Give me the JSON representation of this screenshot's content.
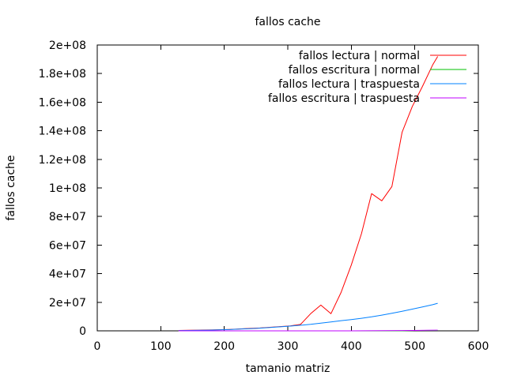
{
  "chart_data": {
    "type": "line",
    "title": "fallos cache",
    "xlabel": "tamanio matriz",
    "ylabel": "fallos cache",
    "xlim": [
      0,
      600
    ],
    "ylim": [
      0,
      200000000
    ],
    "x_ticks": [
      0,
      100,
      200,
      300,
      400,
      500,
      600
    ],
    "x_tick_labels": [
      "0",
      "100",
      "200",
      "300",
      "400",
      "500",
      "600"
    ],
    "y_ticks": [
      0,
      20000000,
      40000000,
      60000000,
      80000000,
      100000000,
      120000000,
      140000000,
      160000000,
      180000000,
      200000000
    ],
    "y_tick_labels": [
      "0",
      "2e+07",
      "4e+07",
      "6e+07",
      "8e+07",
      "1e+08",
      "1.2e+08",
      "1.4e+08",
      "1.6e+08",
      "1.8e+08",
      "2e+08"
    ],
    "grid": false,
    "legend_position": "top-right",
    "series": [
      {
        "name": "fallos lectura | normal",
        "color": "#ff0000",
        "x": [
          128,
          144,
          160,
          176,
          192,
          208,
          224,
          240,
          256,
          272,
          288,
          304,
          320,
          336,
          352,
          368,
          384,
          400,
          416,
          432,
          448,
          464,
          480,
          496,
          512,
          528,
          536
        ],
        "y": [
          300000,
          400000,
          500000,
          600000,
          800000,
          1000000,
          1300000,
          1700000,
          2000000,
          2500000,
          3000000,
          3500000,
          4500000,
          12000000,
          18000000,
          12000000,
          27000000,
          46000000,
          68000000,
          96000000,
          91000000,
          101000000,
          139000000,
          157000000,
          171000000,
          186000000,
          192000000
        ]
      },
      {
        "name": "fallos escritura | normal",
        "color": "#00c000",
        "x": [
          128,
          200,
          300,
          400,
          480,
          500,
          520,
          536
        ],
        "y": [
          0,
          0,
          0,
          0,
          0,
          300000,
          300000,
          300000
        ]
      },
      {
        "name": "fallos lectura | traspuesta",
        "color": "#0080ff",
        "x": [
          128,
          144,
          160,
          176,
          192,
          208,
          224,
          240,
          256,
          272,
          288,
          304,
          320,
          336,
          352,
          368,
          384,
          400,
          416,
          432,
          448,
          464,
          480,
          496,
          512,
          528,
          536
        ],
        "y": [
          200000,
          300000,
          400000,
          500000,
          700000,
          900000,
          1200000,
          1500000,
          1900000,
          2300000,
          2800000,
          3300000,
          3900000,
          4600000,
          5400000,
          6200000,
          7100000,
          7900000,
          8800000,
          9800000,
          11000000,
          12300000,
          13700000,
          15200000,
          16700000,
          18300000,
          19300000
        ]
      },
      {
        "name": "fallos escritura | traspuesta",
        "color": "#c000ff",
        "x": [
          128,
          200,
          300,
          400,
          480,
          500,
          520,
          536
        ],
        "y": [
          0,
          0,
          0,
          0,
          200000,
          300000,
          400000,
          500000
        ]
      }
    ]
  }
}
